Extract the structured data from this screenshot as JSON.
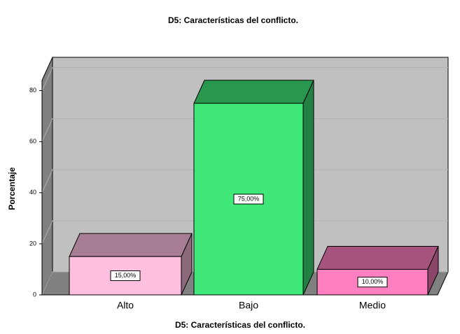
{
  "chart_data": {
    "type": "bar3d",
    "title": "D5: Características del conflicto.",
    "x_label": "D5: Características del conflicto.",
    "y_label": "Porcentaje",
    "categories": [
      "Alto",
      "Bajo",
      "Medio"
    ],
    "values": [
      15,
      75,
      10
    ],
    "value_labels": [
      "15,00%",
      "75,00%",
      "10,00%"
    ],
    "colors": [
      "#ffc0e0",
      "#40e87a",
      "#ff80c0"
    ],
    "ylim": [
      0,
      84
    ],
    "yticks": [
      0,
      20,
      40,
      60,
      80
    ],
    "grid": true
  }
}
